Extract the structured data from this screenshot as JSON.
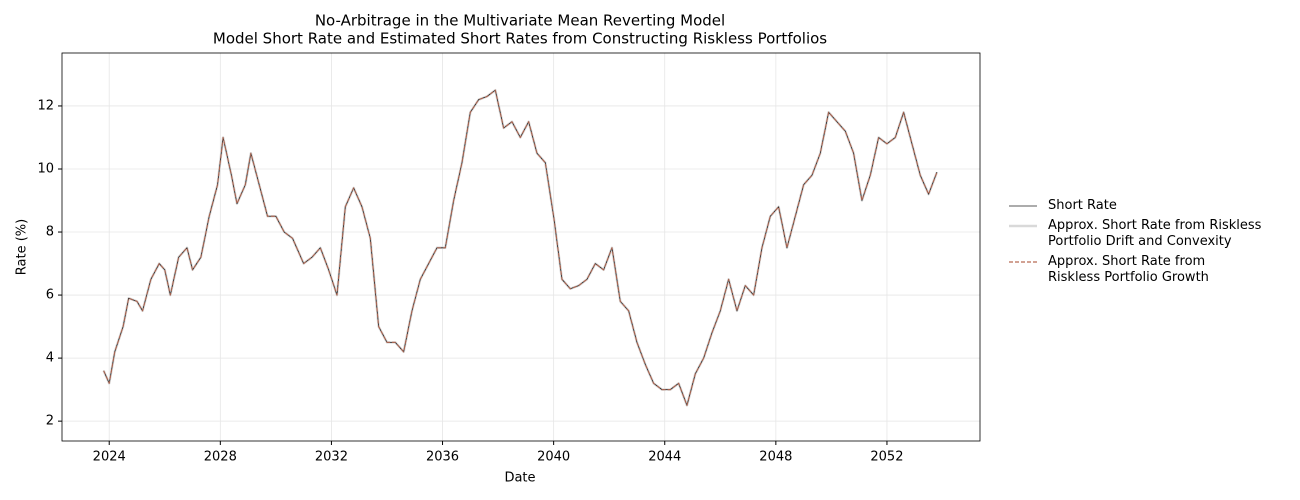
{
  "chart_data": {
    "type": "line",
    "title": "No-Arbitrage in the Multivariate Mean Reverting Model",
    "subtitle": "Model Short Rate and Estimated Short Rates from Constructing Riskless Portfolios",
    "xlabel": "Date",
    "ylabel": "Rate (%)",
    "x": [
      2023.8,
      2024.0,
      2024.2,
      2024.5,
      2024.7,
      2025.0,
      2025.2,
      2025.5,
      2025.8,
      2026.0,
      2026.2,
      2026.5,
      2026.8,
      2027.0,
      2027.3,
      2027.6,
      2027.9,
      2028.1,
      2028.4,
      2028.6,
      2028.9,
      2029.1,
      2029.4,
      2029.7,
      2030.0,
      2030.3,
      2030.6,
      2031.0,
      2031.3,
      2031.6,
      2031.9,
      2032.2,
      2032.5,
      2032.8,
      2033.1,
      2033.4,
      2033.7,
      2034.0,
      2034.3,
      2034.6,
      2034.9,
      2035.2,
      2035.5,
      2035.8,
      2036.1,
      2036.4,
      2036.7,
      2037.0,
      2037.3,
      2037.6,
      2037.9,
      2038.2,
      2038.5,
      2038.8,
      2039.1,
      2039.4,
      2039.7,
      2040.0,
      2040.3,
      2040.6,
      2040.9,
      2041.2,
      2041.5,
      2041.8,
      2042.1,
      2042.4,
      2042.7,
      2043.0,
      2043.3,
      2043.6,
      2043.9,
      2044.2,
      2044.5,
      2044.8,
      2045.1,
      2045.4,
      2045.7,
      2046.0,
      2046.3,
      2046.6,
      2046.9,
      2047.2,
      2047.5,
      2047.8,
      2048.1,
      2048.4,
      2048.7,
      2049.0,
      2049.3,
      2049.6,
      2049.9,
      2050.2,
      2050.5,
      2050.8,
      2051.1,
      2051.4,
      2051.7,
      2052.0,
      2052.3,
      2052.6,
      2052.9,
      2053.2,
      2053.5,
      2053.8
    ],
    "series": [
      {
        "name": "Approx. Short Rate from Riskless\nPortfolio Drift and Convexity",
        "color": "#d9d9d9",
        "width": 2.5,
        "dash": false,
        "values": [
          3.6,
          3.2,
          4.2,
          5.0,
          5.9,
          5.8,
          5.5,
          6.5,
          7.0,
          6.8,
          6.0,
          7.2,
          7.5,
          6.8,
          7.2,
          8.5,
          9.5,
          11.0,
          9.8,
          8.9,
          9.5,
          10.5,
          9.5,
          8.5,
          8.5,
          8.0,
          7.8,
          7.0,
          7.2,
          7.5,
          6.8,
          6.0,
          8.8,
          9.4,
          8.8,
          7.8,
          5.0,
          4.5,
          4.5,
          4.2,
          5.5,
          6.5,
          7.0,
          7.5,
          7.5,
          9.0,
          10.2,
          11.8,
          12.2,
          12.3,
          12.5,
          11.3,
          11.5,
          11.0,
          11.5,
          10.5,
          10.2,
          8.5,
          6.5,
          6.2,
          6.3,
          6.5,
          7.0,
          6.8,
          7.5,
          5.8,
          5.5,
          4.5,
          3.8,
          3.2,
          3.0,
          3.0,
          3.2,
          2.5,
          3.5,
          4.0,
          4.8,
          5.5,
          6.5,
          5.5,
          6.3,
          6.0,
          7.5,
          8.5,
          8.8,
          7.5,
          8.5,
          9.5,
          9.8,
          10.5,
          11.8,
          11.5,
          11.2,
          10.5,
          9.0,
          9.8,
          11.0,
          10.8,
          11.0,
          11.8,
          10.8,
          9.8,
          9.2,
          9.9
        ]
      },
      {
        "name": "Short Rate",
        "color": "#222222",
        "width": 0.8,
        "dash": false,
        "values": [
          3.6,
          3.2,
          4.2,
          5.0,
          5.9,
          5.8,
          5.5,
          6.5,
          7.0,
          6.8,
          6.0,
          7.2,
          7.5,
          6.8,
          7.2,
          8.5,
          9.5,
          11.0,
          9.8,
          8.9,
          9.5,
          10.5,
          9.5,
          8.5,
          8.5,
          8.0,
          7.8,
          7.0,
          7.2,
          7.5,
          6.8,
          6.0,
          8.8,
          9.4,
          8.8,
          7.8,
          5.0,
          4.5,
          4.5,
          4.2,
          5.5,
          6.5,
          7.0,
          7.5,
          7.5,
          9.0,
          10.2,
          11.8,
          12.2,
          12.3,
          12.5,
          11.3,
          11.5,
          11.0,
          11.5,
          10.5,
          10.2,
          8.5,
          6.5,
          6.2,
          6.3,
          6.5,
          7.0,
          6.8,
          7.5,
          5.8,
          5.5,
          4.5,
          3.8,
          3.2,
          3.0,
          3.0,
          3.2,
          2.5,
          3.5,
          4.0,
          4.8,
          5.5,
          6.5,
          5.5,
          6.3,
          6.0,
          7.5,
          8.5,
          8.8,
          7.5,
          8.5,
          9.5,
          9.8,
          10.5,
          11.8,
          11.5,
          11.2,
          10.5,
          9.0,
          9.8,
          11.0,
          10.8,
          11.0,
          11.8,
          10.8,
          9.8,
          9.2,
          9.9
        ]
      },
      {
        "name": "Approx. Short Rate from\nRiskless Portfolio Growth",
        "color": "#b86b55",
        "width": 1.2,
        "dash": true,
        "values": [
          3.6,
          3.2,
          4.2,
          5.0,
          5.9,
          5.8,
          5.5,
          6.5,
          7.0,
          6.8,
          6.0,
          7.2,
          7.5,
          6.8,
          7.2,
          8.5,
          9.5,
          11.0,
          9.8,
          8.9,
          9.5,
          10.5,
          9.5,
          8.5,
          8.5,
          8.0,
          7.8,
          7.0,
          7.2,
          7.5,
          6.8,
          6.0,
          8.8,
          9.4,
          8.8,
          7.8,
          5.0,
          4.5,
          4.5,
          4.2,
          5.5,
          6.5,
          7.0,
          7.5,
          7.5,
          9.0,
          10.2,
          11.8,
          12.2,
          12.3,
          12.5,
          11.3,
          11.5,
          11.0,
          11.5,
          10.5,
          10.2,
          8.5,
          6.5,
          6.2,
          6.3,
          6.5,
          7.0,
          6.8,
          7.5,
          5.8,
          5.5,
          4.5,
          3.8,
          3.2,
          3.0,
          3.0,
          3.2,
          2.5,
          3.5,
          4.0,
          4.8,
          5.5,
          6.5,
          5.5,
          6.3,
          6.0,
          7.5,
          8.5,
          8.8,
          7.5,
          8.5,
          9.5,
          9.8,
          10.5,
          11.8,
          11.5,
          11.2,
          10.5,
          9.0,
          9.8,
          11.0,
          10.8,
          11.0,
          11.8,
          10.8,
          9.8,
          9.2,
          9.9
        ]
      }
    ],
    "legend_order": [
      1,
      0,
      2
    ],
    "xlim": [
      2022.3,
      2055.35
    ],
    "xticks": [
      2024,
      2028,
      2032,
      2036,
      2040,
      2044,
      2048,
      2052
    ],
    "ylim": [
      1.37,
      13.68
    ],
    "yticks": [
      2,
      4,
      6,
      8,
      10,
      12
    ],
    "grid": true,
    "legend": "right"
  }
}
